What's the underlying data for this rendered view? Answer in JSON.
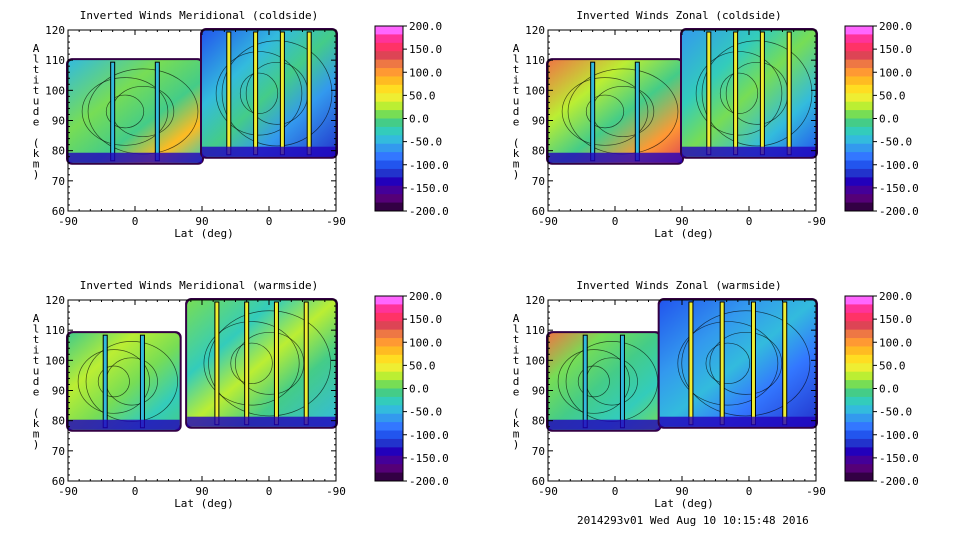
{
  "footer": "2014293v01 Wed Aug 10 10:15:48 2016",
  "colorbar": {
    "labels": [
      "200.0",
      "150.0",
      "100.0",
      "50.0",
      "0.0",
      "-50.0",
      "-100.0",
      "-150.0",
      "-200.0"
    ],
    "colors": [
      "#ff66ff",
      "#ff3399",
      "#ff3366",
      "#dd4455",
      "#ee7744",
      "#ff9933",
      "#ffbb22",
      "#ffdd22",
      "#eeee33",
      "#bbee33",
      "#77dd55",
      "#44cc88",
      "#33ccbb",
      "#33bbdd",
      "#3399ee",
      "#3377ff",
      "#2255ee",
      "#2233cc",
      "#2200bb",
      "#440099",
      "#550077",
      "#330044"
    ]
  },
  "chart_data": [
    {
      "type": "heatmap",
      "title": "Inverted Winds Meridional (coldside)",
      "xlabel": "Lat (deg)",
      "ylabel": "Altitude (km)",
      "xticks": [
        "-90",
        "0",
        "90",
        "0",
        "-90"
      ],
      "yticks": [
        "60",
        "70",
        "80",
        "90",
        "100",
        "110",
        "120"
      ],
      "ylim": [
        60,
        120
      ],
      "zlim": [
        -200,
        200
      ],
      "segments": [
        {
          "x": [
            -90,
            90
          ],
          "y": [
            76,
            110
          ],
          "dominant": "cyan-green",
          "max_region": "yellow near 45-60 deg, 95-100 km"
        },
        {
          "x": [
            90,
            -90
          ],
          "y": [
            78,
            120
          ],
          "dominant": "cyan-blue",
          "max_region": "yellow streaks near 0 deg"
        }
      ]
    },
    {
      "type": "heatmap",
      "title": "Inverted Winds Zonal (coldside)",
      "xlabel": "Lat (deg)",
      "ylabel": "Altitude (km)",
      "xticks": [
        "-90",
        "0",
        "90",
        "0",
        "-90"
      ],
      "yticks": [
        "60",
        "70",
        "80",
        "90",
        "100",
        "110",
        "120"
      ],
      "ylim": [
        60,
        120
      ],
      "zlim": [
        -200,
        200
      ],
      "segments": [
        {
          "x": [
            -90,
            90
          ],
          "y": [
            76,
            110
          ],
          "dominant": "green-yellow",
          "max_region": "orange/red near 75-90 deg, 90 km"
        },
        {
          "x": [
            90,
            -90
          ],
          "y": [
            78,
            120
          ],
          "dominant": "cyan-blue",
          "max_region": "yellow near 110-120 km"
        }
      ]
    },
    {
      "type": "heatmap",
      "title": "Inverted Winds Meridional (warmside)",
      "xlabel": "Lat (deg)",
      "ylabel": "Altitude (km)",
      "xticks": [
        "-90",
        "0",
        "90",
        "0",
        "-90"
      ],
      "yticks": [
        "60",
        "70",
        "80",
        "90",
        "100",
        "110",
        "120"
      ],
      "ylim": [
        60,
        120
      ],
      "zlim": [
        -200,
        200
      ],
      "segments": [
        {
          "x": [
            -90,
            60
          ],
          "y": [
            77,
            109
          ],
          "dominant": "green-cyan",
          "max_region": "yellow near 10-20 deg, 95 km"
        },
        {
          "x": [
            110,
            -90
          ],
          "y": [
            78,
            120
          ],
          "dominant": "green-cyan",
          "max_region": "yellow near 110-120 km"
        }
      ]
    },
    {
      "type": "heatmap",
      "title": "Inverted Winds Zonal (warmside)",
      "xlabel": "Lat (deg)",
      "ylabel": "Altitude (km)",
      "xticks": [
        "-90",
        "0",
        "90",
        "0",
        "-90"
      ],
      "yticks": [
        "60",
        "70",
        "80",
        "90",
        "100",
        "110",
        "120"
      ],
      "ylim": [
        60,
        120
      ],
      "zlim": [
        -200,
        200
      ],
      "segments": [
        {
          "x": [
            -90,
            60
          ],
          "y": [
            77,
            109
          ],
          "dominant": "green",
          "max_region": "orange band near 100-105 km"
        },
        {
          "x": [
            120,
            -90
          ],
          "y": [
            78,
            120
          ],
          "dominant": "blue",
          "max_region": "yellow streaks near 30-60 deg"
        }
      ]
    }
  ]
}
